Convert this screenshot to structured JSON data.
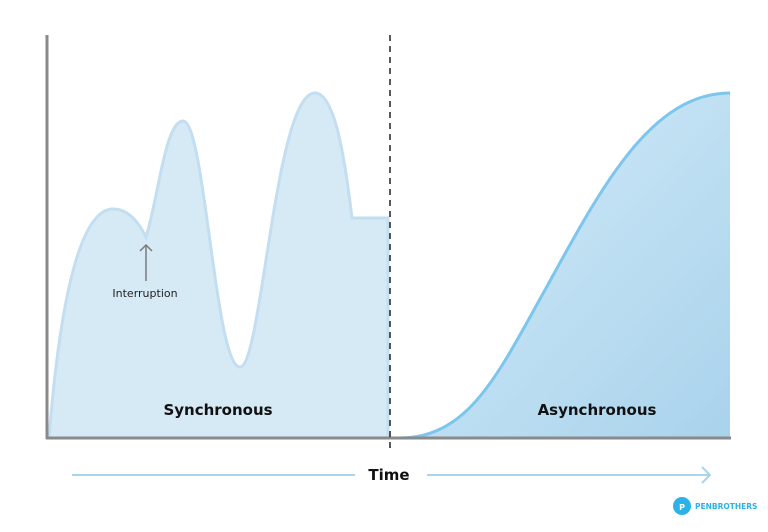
{
  "diagram": {
    "sync_label": "Synchronous",
    "async_label": "Asynchronous",
    "interruption_label": "Interruption",
    "time_label": "Time",
    "brand": "PENBROTHERS",
    "colors": {
      "sync_fill": "#d6eaf6",
      "sync_stroke": "#c2def0",
      "async_fill_top": "#d3e9f7",
      "async_fill_bottom": "#a9d3ec",
      "async_stroke": "#7cc6ee",
      "axis": "#8a8a8a",
      "time_arrow": "#a9d4ea",
      "brand": "#2bb3e8"
    }
  }
}
